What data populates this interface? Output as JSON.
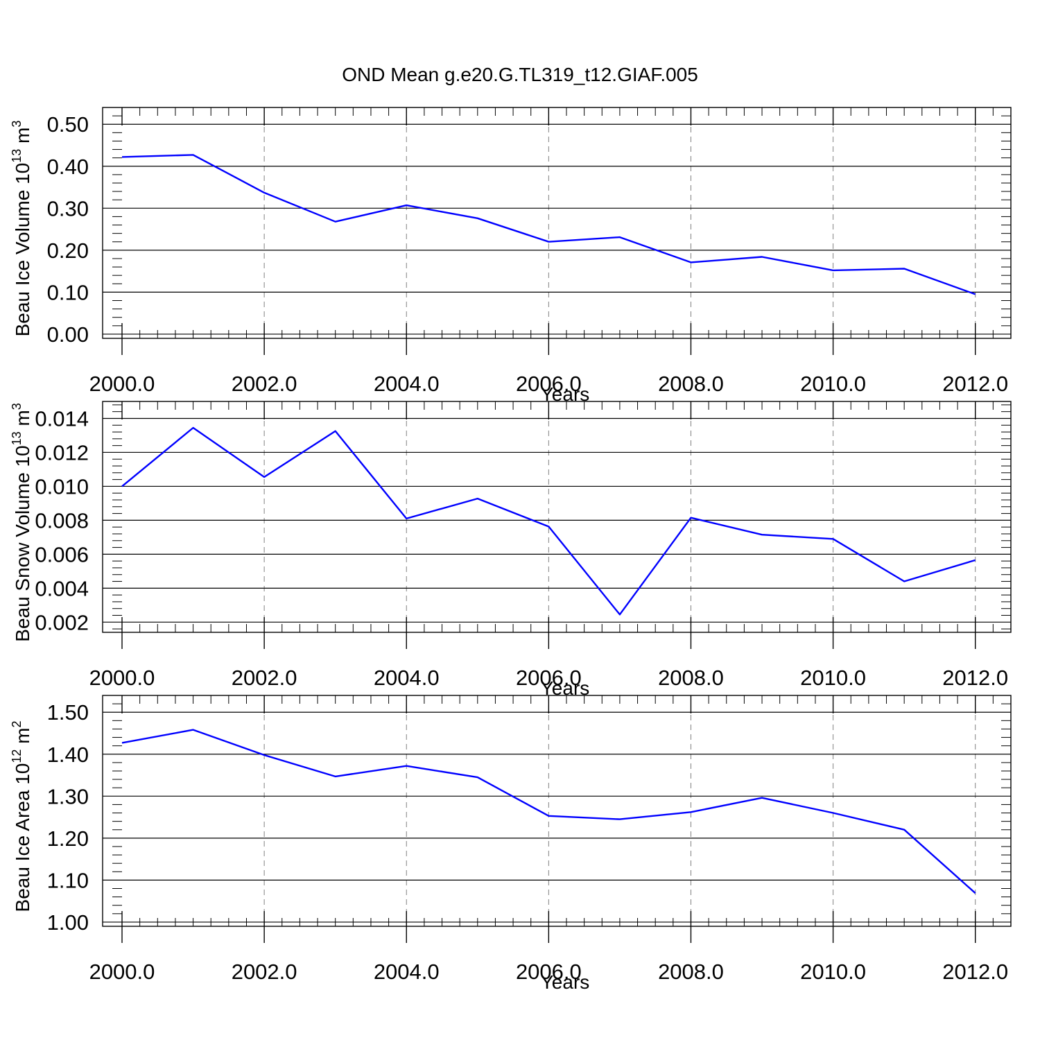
{
  "title": "OND Mean g.e20.G.TL319_t12.GIAF.005",
  "colors": {
    "line": "#0000ff",
    "axis": "#000000",
    "grid": "#808080"
  },
  "chart_data": [
    {
      "type": "line",
      "xlabel": "Years",
      "ylabel": {
        "main": "Beau Ice Volume 10",
        "sup": "13",
        "unit": " m",
        "unit_sup": "3"
      },
      "xlim": [
        2000,
        2012.5
      ],
      "ylim": [
        -0.01,
        0.54
      ],
      "xticks": [
        2000,
        2002,
        2004,
        2006,
        2008,
        2010,
        2012
      ],
      "xtick_labels": [
        "2000.0",
        "2002.0",
        "2004.0",
        "2006.0",
        "2008.0",
        "2010.0",
        "2012.0"
      ],
      "yticks": [
        0.0,
        0.1,
        0.2,
        0.3,
        0.4,
        0.5
      ],
      "ytick_labels": [
        "0.00",
        "0.10",
        "0.20",
        "0.30",
        "0.40",
        "0.50"
      ],
      "y_minor_step": 0.02,
      "grid": "x-dashed",
      "x": [
        2000,
        2001,
        2002,
        2003,
        2004,
        2005,
        2006,
        2007,
        2008,
        2009,
        2010,
        2011,
        2012
      ],
      "values": [
        0.422,
        0.427,
        0.337,
        0.268,
        0.307,
        0.276,
        0.22,
        0.231,
        0.171,
        0.184,
        0.152,
        0.156,
        0.095
      ]
    },
    {
      "type": "line",
      "xlabel": "Years",
      "ylabel": {
        "main": "Beau Snow Volume 10",
        "sup": "13",
        "unit": " m",
        "unit_sup": "3"
      },
      "xlim": [
        2000,
        2012.5
      ],
      "ylim": [
        0.0014,
        0.015
      ],
      "xticks": [
        2000,
        2002,
        2004,
        2006,
        2008,
        2010,
        2012
      ],
      "xtick_labels": [
        "2000.0",
        "2002.0",
        "2004.0",
        "2006.0",
        "2008.0",
        "2010.0",
        "2012.0"
      ],
      "yticks": [
        0.002,
        0.004,
        0.006,
        0.008,
        0.01,
        0.012,
        0.014
      ],
      "ytick_labels": [
        "0.002",
        "0.004",
        "0.006",
        "0.008",
        "0.010",
        "0.012",
        "0.014"
      ],
      "y_minor_step": 0.0004,
      "grid": "x-dashed",
      "x": [
        2000,
        2001,
        2002,
        2003,
        2004,
        2005,
        2006,
        2007,
        2008,
        2009,
        2010,
        2011,
        2012
      ],
      "values": [
        0.01,
        0.01345,
        0.01055,
        0.01325,
        0.0081,
        0.00928,
        0.00763,
        0.00245,
        0.00815,
        0.00715,
        0.0069,
        0.0044,
        0.00565
      ]
    },
    {
      "type": "line",
      "xlabel": "Years",
      "ylabel": {
        "main": "Beau Ice Area 10",
        "sup": "12",
        "unit": " m",
        "unit_sup": "2"
      },
      "xlim": [
        2000,
        2012.5
      ],
      "ylim": [
        0.99,
        1.54
      ],
      "xticks": [
        2000,
        2002,
        2004,
        2006,
        2008,
        2010,
        2012
      ],
      "xtick_labels": [
        "2000.0",
        "2002.0",
        "2004.0",
        "2006.0",
        "2008.0",
        "2010.0",
        "2012.0"
      ],
      "yticks": [
        1.0,
        1.1,
        1.2,
        1.3,
        1.4,
        1.5
      ],
      "ytick_labels": [
        "1.00",
        "1.10",
        "1.20",
        "1.30",
        "1.40",
        "1.50"
      ],
      "y_minor_step": 0.02,
      "grid": "x-dashed",
      "x": [
        2000,
        2001,
        2002,
        2003,
        2004,
        2005,
        2006,
        2007,
        2008,
        2009,
        2010,
        2011,
        2012
      ],
      "values": [
        1.427,
        1.458,
        1.398,
        1.347,
        1.372,
        1.345,
        1.253,
        1.245,
        1.262,
        1.296,
        1.26,
        1.22,
        1.069
      ]
    }
  ]
}
